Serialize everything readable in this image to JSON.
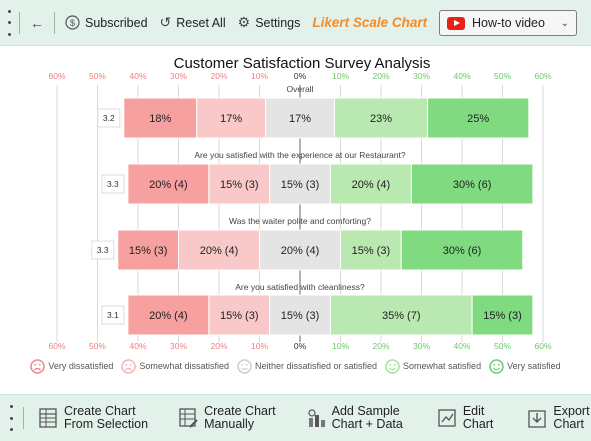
{
  "toolbar": {
    "subscribed": "Subscribed",
    "reset": "Reset All",
    "settings": "Settings",
    "brand": "Likert Scale Chart",
    "howto": "How-to video"
  },
  "bottom": {
    "create_selection": "Create Chart\nFrom Selection",
    "create_manual": "Create Chart\nManually",
    "add_sample": "Add Sample\nChart + Data",
    "edit": "Edit\nChart",
    "export": "Export\nChart"
  },
  "legend": [
    {
      "label": "Very dissatisfied",
      "color": "#f28b8b",
      "mood": "sad"
    },
    {
      "label": "Somewhat dissatisfied",
      "color": "#f7b4b4",
      "mood": "sad"
    },
    {
      "label": "Neither dissatisfied or satisfied",
      "color": "#cfcfcf",
      "mood": "neutral"
    },
    {
      "label": "Somewhat satisfied",
      "color": "#a8e3a0",
      "mood": "happy"
    },
    {
      "label": "Very satisfied",
      "color": "#6ecf72",
      "mood": "happy"
    }
  ],
  "chart_data": {
    "type": "bar",
    "title": "Customer Satisfaction Survey Analysis",
    "axis_ticks": [
      "60%",
      "50%",
      "40%",
      "30%",
      "20%",
      "10%",
      "0%",
      "10%",
      "20%",
      "30%",
      "40%",
      "50%",
      "60%"
    ],
    "xlim": [
      -60,
      60
    ],
    "categories": [
      "Overall",
      "Are you satisfied with the experience at our Restaurant?",
      "Was the waiter polite and comforting?",
      "Are you satisfied with cleanliness?"
    ],
    "scores": [
      "3.2",
      "3.3",
      "3.3",
      "3.1"
    ],
    "series_colors": [
      "#f6a0a0",
      "#f9c9c9",
      "#e4e4e4",
      "#b9e8b0",
      "#80da80"
    ],
    "values": [
      [
        18,
        17,
        17,
        23,
        25
      ],
      [
        20,
        15,
        15,
        20,
        30
      ],
      [
        15,
        20,
        20,
        15,
        30
      ],
      [
        20,
        15,
        15,
        35,
        15
      ]
    ],
    "labels": [
      [
        "18%",
        "17%",
        "17%",
        "23%",
        "25%"
      ],
      [
        "20% (4)",
        "15% (3)",
        "15% (3)",
        "20% (4)",
        "30% (6)"
      ],
      [
        "15% (3)",
        "20% (4)",
        "20% (4)",
        "15% (3)",
        "30% (6)"
      ],
      [
        "20% (4)",
        "15% (3)",
        "15% (3)",
        "35% (7)",
        "15% (3)"
      ]
    ]
  }
}
